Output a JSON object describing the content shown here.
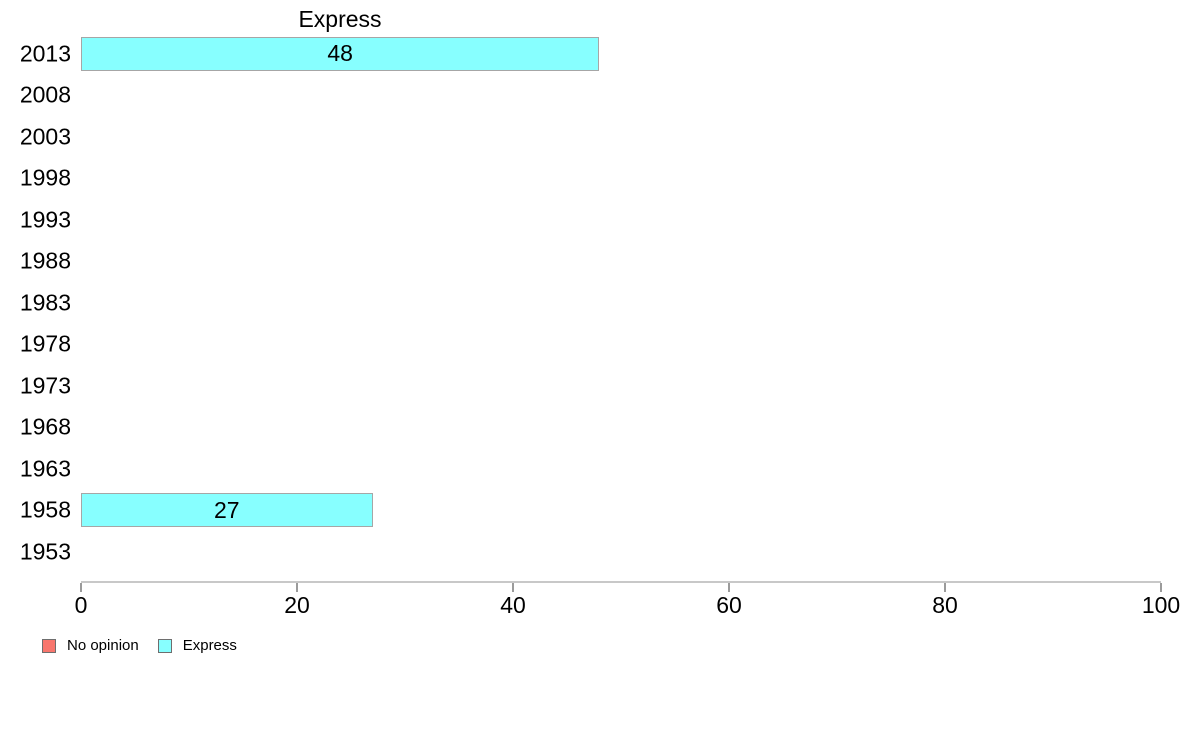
{
  "chart_data": {
    "type": "bar",
    "orientation": "horizontal",
    "title": "Express",
    "categories": [
      "2013",
      "2008",
      "2003",
      "1998",
      "1993",
      "1988",
      "1983",
      "1978",
      "1973",
      "1968",
      "1963",
      "1958",
      "1953"
    ],
    "series": [
      {
        "name": "No opinion",
        "color": "#F8766D",
        "values": [
          null,
          null,
          null,
          null,
          null,
          null,
          null,
          null,
          null,
          null,
          null,
          null,
          null
        ]
      },
      {
        "name": "Express",
        "color": "#87FFFF",
        "values": [
          48,
          null,
          null,
          null,
          null,
          null,
          null,
          null,
          null,
          null,
          null,
          27,
          null
        ]
      }
    ],
    "xlim": [
      0,
      100
    ],
    "xticks": [
      0,
      20,
      40,
      60,
      80,
      100
    ],
    "bar_value_labels": true,
    "grid": false,
    "legend": {
      "position": "bottom-left",
      "items": [
        {
          "label": "No opinion",
          "color": "#F8766D"
        },
        {
          "label": "Express",
          "color": "#87FFFF"
        }
      ]
    },
    "style_colors": {
      "bar_fill": "#87FFFF",
      "bar_border": "#A6A6A6",
      "axis_line": "#C8C8C8",
      "tick_mark": "#9B9B9B",
      "text": "#000000"
    }
  }
}
